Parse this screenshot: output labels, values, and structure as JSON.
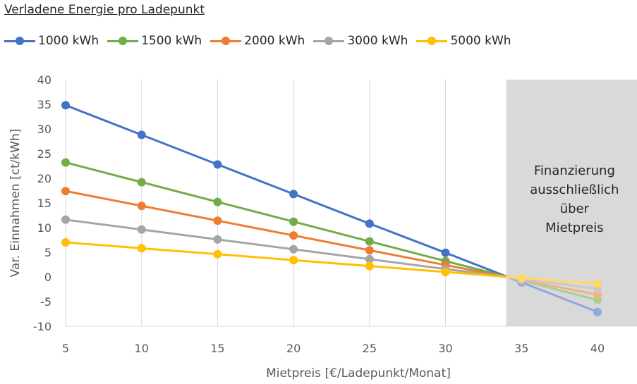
{
  "chart_data": {
    "type": "line",
    "legend_title": "Verladene Energie pro Ladepunkt",
    "legend_position": "top-left",
    "xlabel": "Mietpreis [€/Ladepunkt/Monat]",
    "ylabel": "Var. Einnahmen [ct/kWh]",
    "x": [
      5,
      10,
      15,
      20,
      25,
      30,
      35,
      40
    ],
    "x_ticks": [
      "5",
      "10",
      "15",
      "20",
      "25",
      "30",
      "35",
      "40"
    ],
    "xlim": [
      5,
      42.6
    ],
    "ylim": [
      -10,
      40
    ],
    "y_ticks": [
      "40",
      "35",
      "30",
      "25",
      "20",
      "15",
      "10",
      "5",
      "0",
      "-5",
      "-10"
    ],
    "grid": "vertical",
    "shaded_region": {
      "x_from": 34,
      "x_to": 42.6,
      "color": "#d9d9d9"
    },
    "annotation": [
      "Finanzierung",
      "ausschließlich",
      "über",
      "Mietpreis"
    ],
    "series": [
      {
        "name": "1000 kWh",
        "color": "#4472C4",
        "faded_color": "#8EA9DB",
        "values": [
          34.8,
          28.8,
          22.8,
          16.8,
          10.8,
          4.9,
          -1.1,
          -7.1
        ]
      },
      {
        "name": "1500 kWh",
        "color": "#70AD47",
        "faded_color": "#A9D08E",
        "values": [
          23.2,
          19.2,
          15.2,
          11.2,
          7.2,
          3.2,
          -0.7,
          -4.7
        ]
      },
      {
        "name": "2000 kWh",
        "color": "#ED7D31",
        "faded_color": "#F4B183",
        "values": [
          17.4,
          14.4,
          11.4,
          8.4,
          5.4,
          2.4,
          -0.6,
          -3.6
        ]
      },
      {
        "name": "3000 kWh",
        "color": "#A5A5A5",
        "faded_color": "#C9C9C9",
        "values": [
          11.6,
          9.6,
          7.6,
          5.6,
          3.6,
          1.6,
          -0.4,
          -2.4
        ]
      },
      {
        "name": "5000 kWh",
        "color": "#FFC000",
        "faded_color": "#FFD966",
        "values": [
          7.0,
          5.8,
          4.6,
          3.4,
          2.2,
          1.0,
          -0.2,
          -1.4
        ]
      }
    ]
  }
}
